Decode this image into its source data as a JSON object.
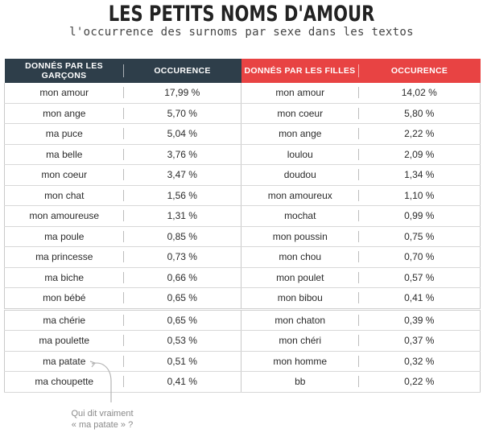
{
  "title": "LES PETITS NOMS D'AMOUR",
  "subtitle": "l'occurrence des surnoms par sexe dans les textos",
  "headers": {
    "boys": "DONNÉS PAR LES GARÇONS",
    "boys_occ": "OCCURENCE",
    "girls": "DONNÉS PAR LES FILLES",
    "girls_occ": "OCCURENCE"
  },
  "rows": [
    {
      "b": "mon amour",
      "bo": "17,99 %",
      "g": "mon amour",
      "go": "14,02 %"
    },
    {
      "b": "mon ange",
      "bo": "5,70 %",
      "g": "mon coeur",
      "go": "5,80 %"
    },
    {
      "b": "ma puce",
      "bo": "5,04 %",
      "g": "mon ange",
      "go": "2,22 %"
    },
    {
      "b": "ma belle",
      "bo": "3,76 %",
      "g": "loulou",
      "go": "2,09 %"
    },
    {
      "b": "mon coeur",
      "bo": "3,47 %",
      "g": "doudou",
      "go": "1,34 %"
    },
    {
      "b": "mon chat",
      "bo": "1,56 %",
      "g": "mon amoureux",
      "go": "1,10 %"
    },
    {
      "b": "mon amoureuse",
      "bo": "1,31 %",
      "g": "mochat",
      "go": "0,99 %"
    },
    {
      "b": "ma poule",
      "bo": "0,85 %",
      "g": "mon poussin",
      "go": "0,75 %"
    },
    {
      "b": "ma princesse",
      "bo": "0,73 %",
      "g": "mon chou",
      "go": "0,70 %"
    },
    {
      "b": "ma biche",
      "bo": "0,66 %",
      "g": "mon poulet",
      "go": "0,57 %"
    },
    {
      "b": "mon bébé",
      "bo": "0,65 %",
      "g": "mon bibou",
      "go": "0,41 %"
    },
    {
      "b": "ma chérie",
      "bo": "0,65 %",
      "g": "mon chaton",
      "go": "0,39 %"
    },
    {
      "b": "ma poulette",
      "bo": "0,53 %",
      "g": "mon chéri",
      "go": "0,37 %"
    },
    {
      "b": "ma patate",
      "bo": "0,51 %",
      "g": "mon homme",
      "go": "0,32 %"
    },
    {
      "b": "ma choupette",
      "bo": "0,41 %",
      "g": "bb",
      "go": "0,22 %"
    }
  ],
  "note_line1": "Qui dit vraiment",
  "note_line2": "« ma patate » ?",
  "colors": {
    "boys_header": "#2e3e4a",
    "girls_header": "#e84343"
  }
}
